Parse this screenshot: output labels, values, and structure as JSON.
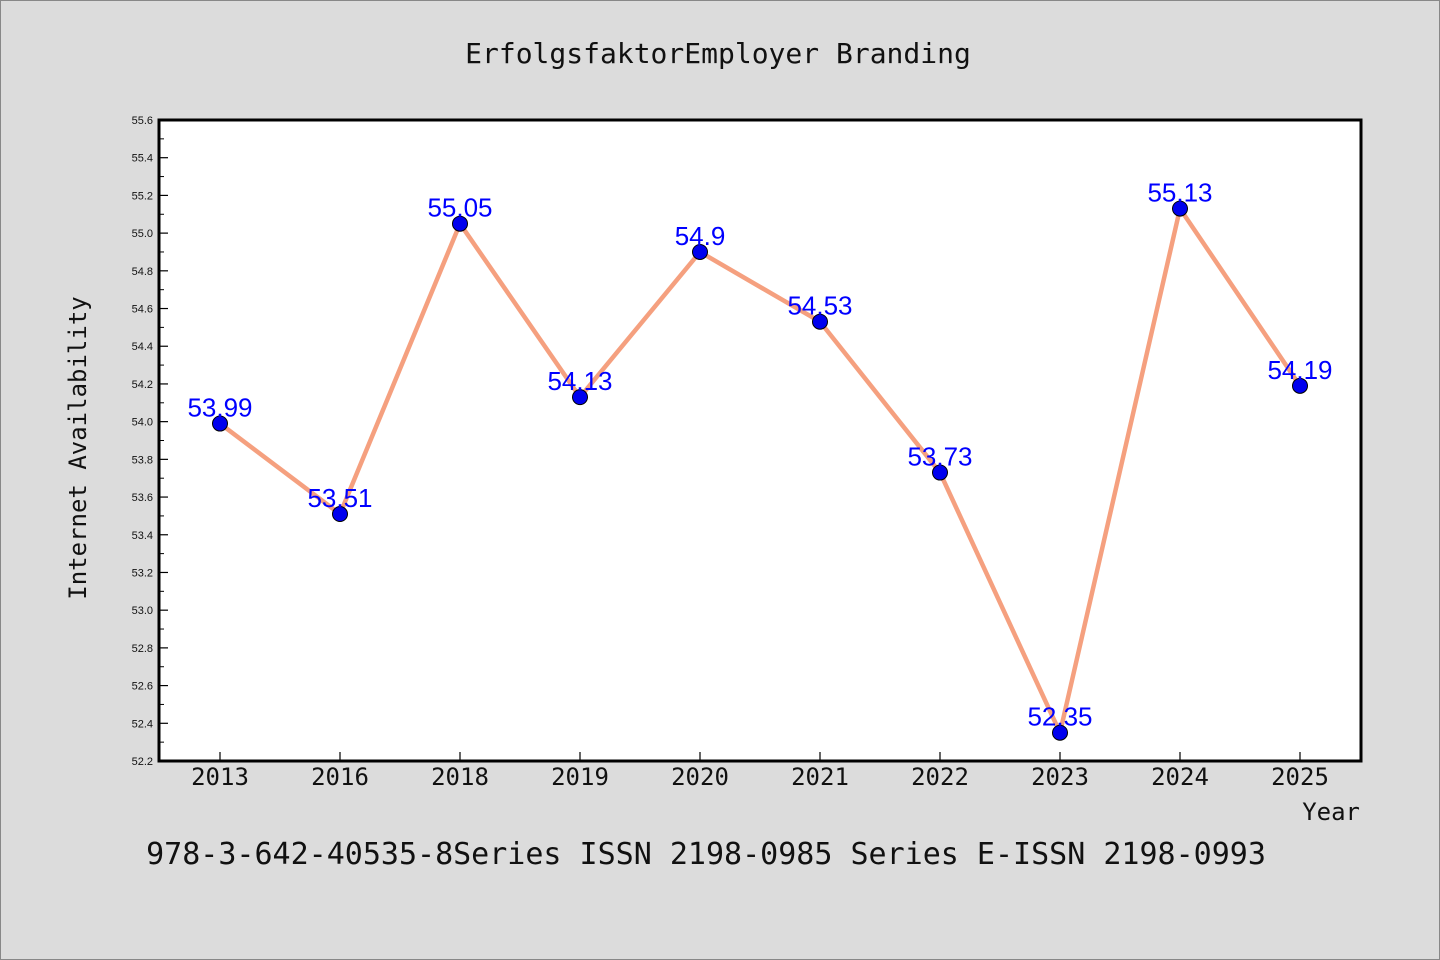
{
  "chart_data": {
    "type": "line",
    "title": "ErfolgsfaktorEmployer Branding",
    "xlabel": "Year",
    "ylabel": "Internet Availability",
    "footer": "978-3-642-40535-8Series ISSN 2198-0985 Series E-ISSN 2198-0993",
    "categories": [
      "2013",
      "2016",
      "2018",
      "2019",
      "2020",
      "2021",
      "2022",
      "2023",
      "2024",
      "2025"
    ],
    "values": [
      53.99,
      53.51,
      55.05,
      54.13,
      54.9,
      54.53,
      53.73,
      52.35,
      55.13,
      54.19
    ],
    "data_labels": [
      "53.99",
      "53.51",
      "55.05",
      "54.13",
      "54.9",
      "54.53",
      "53.73",
      "52.35",
      "55.13",
      "54.19"
    ],
    "ylim": [
      52.2,
      55.6
    ],
    "y_ticks": [
      "52.2",
      "52.4",
      "52.6",
      "52.8",
      "53.0",
      "53.2",
      "53.4",
      "53.6",
      "53.8",
      "54.0",
      "54.2",
      "54.4",
      "54.6",
      "54.8",
      "55.0",
      "55.2",
      "55.4",
      "55.6"
    ],
    "grid": false,
    "legend": "none",
    "colors": {
      "line": "#f5a07f",
      "marker": "#0000ee",
      "label": "#0000ff",
      "background": "#dcdcdc",
      "plot_background": "#ffffff"
    }
  }
}
